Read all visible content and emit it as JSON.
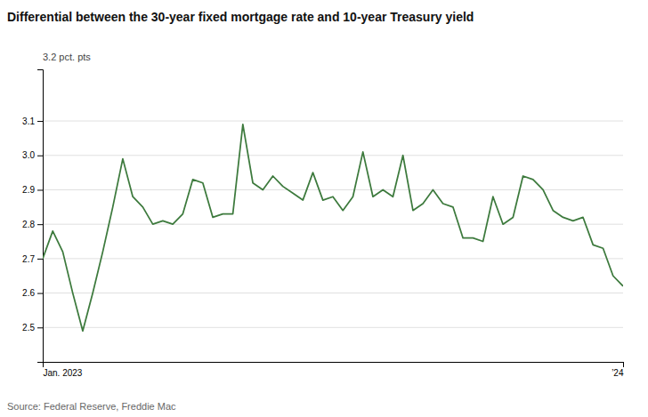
{
  "chart_data": {
    "type": "line",
    "title": "Differential between the 30-year fixed mortgage rate and 10-year Treasury yield",
    "annotation": "3.2 pct. pts",
    "source": "Source: Federal Reserve, Freddie Mac",
    "categories": [
      "Jan. 2023",
      null,
      null,
      null,
      null,
      null,
      null,
      null,
      null,
      null,
      null,
      null,
      null,
      null,
      null,
      null,
      null,
      null,
      null,
      null,
      null,
      null,
      null,
      null,
      null,
      null,
      null,
      null,
      null,
      null,
      null,
      null,
      null,
      null,
      null,
      null,
      null,
      null,
      null,
      null,
      null,
      null,
      null,
      null,
      null,
      null,
      null,
      null,
      null,
      null,
      null,
      null,
      null,
      null,
      null,
      null,
      null,
      null,
      "’24"
    ],
    "values": [
      2.7,
      2.78,
      2.72,
      2.6,
      2.49,
      2.6,
      2.72,
      2.85,
      2.99,
      2.88,
      2.85,
      2.8,
      2.81,
      2.8,
      2.83,
      2.93,
      2.92,
      2.82,
      2.83,
      2.83,
      3.09,
      2.92,
      2.9,
      2.94,
      2.91,
      2.89,
      2.87,
      2.95,
      2.87,
      2.88,
      2.84,
      2.88,
      3.01,
      2.88,
      2.9,
      2.88,
      3.0,
      2.84,
      2.86,
      2.9,
      2.86,
      2.85,
      2.76,
      2.76,
      2.75,
      2.88,
      2.8,
      2.82,
      2.94,
      2.93,
      2.9,
      2.84,
      2.82,
      2.81,
      2.82,
      2.74,
      2.73,
      2.65,
      2.62
    ],
    "color": "#3d7a3d",
    "ylim": [
      2.4,
      3.25
    ],
    "yticks": [
      2.5,
      2.6,
      2.7,
      2.8,
      2.9,
      {
        "value": 3.0,
        "label": "3.0"
      },
      3.1
    ],
    "grid": true
  }
}
